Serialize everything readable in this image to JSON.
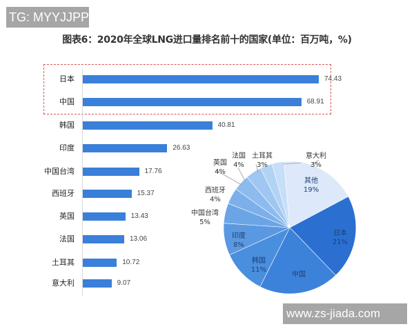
{
  "overlay": {
    "top_left_tag": "TG: MYYJJPP",
    "bottom_right_tag": "www.zs-jiada.com"
  },
  "chart_data": [
    {
      "type": "bar",
      "orientation": "horizontal",
      "title": "图表6：2020年全球LNG进口量排名前十的国家(单位：百万吨，%)",
      "categories": [
        "日本",
        "中国",
        "韩国",
        "印度",
        "中国台湾",
        "西班牙",
        "英国",
        "法国",
        "土耳其",
        "意大利"
      ],
      "values": [
        74.43,
        68.91,
        40.81,
        26.63,
        17.76,
        15.37,
        13.43,
        13.06,
        10.72,
        9.07
      ],
      "value_labels": [
        "74.43",
        "68.91",
        "40.81",
        "26.63",
        "17.76",
        "15.37",
        "13.43",
        "13.06",
        "10.72",
        "9.07"
      ],
      "highlighted": [
        "日本",
        "中国"
      ],
      "xlabel": "",
      "ylabel": "",
      "bar_color": "#3a7fd9",
      "grid": false
    },
    {
      "type": "pie",
      "categories": [
        "日本",
        "中国",
        "韩国",
        "印度",
        "中国台湾",
        "西班牙",
        "英国",
        "法国",
        "土耳其",
        "意大利",
        "其他"
      ],
      "values": [
        21,
        20,
        11,
        8,
        5,
        4,
        4,
        4,
        3,
        3,
        19
      ],
      "labels": [
        "21%",
        "",
        "11%",
        "8%",
        "5%",
        "4%",
        "4%",
        "4%",
        "3%",
        "3%",
        "19%"
      ],
      "colors": [
        "#2b70d0",
        "#3d82da",
        "#4a8ede",
        "#5a99e2",
        "#6ca5e6",
        "#7db0ea",
        "#8ebbee",
        "#a0c7f1",
        "#b3d3f4",
        "#c7def7",
        "#dde9fa"
      ]
    }
  ]
}
